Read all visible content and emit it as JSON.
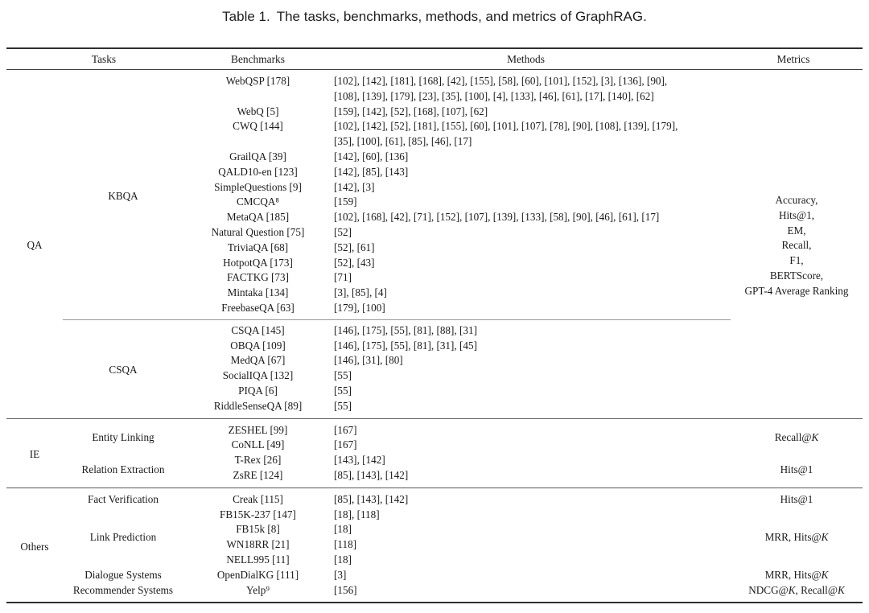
{
  "caption": {
    "label": "Table 1.",
    "text": "The tasks, benchmarks, methods, and metrics of GraphRAG."
  },
  "columns": {
    "tasks": "Tasks",
    "benchmarks": "Benchmarks",
    "methods": "Methods",
    "metrics": "Metrics"
  },
  "sections": [
    {
      "group": "QA",
      "metrics": "Accuracy,\nHits@1,\nEM,\nRecall,\nF1,\nBERTScore,\nGPT-4 Average Ranking",
      "tasks": [
        {
          "name": "KBQA",
          "rows": [
            {
              "benchmark": "WebQSP [178]",
              "methods": "[102], [142], [181], [168], [42], [155], [58], [60], [101], [152], [3], [136], [90],\n[108], [139], [179], [23], [35], [100], [4], [133], [46], [61], [17], [140], [62]"
            },
            {
              "benchmark": "WebQ [5]",
              "methods": "[159], [142], [52], [168], [107], [62]"
            },
            {
              "benchmark": "CWQ [144]",
              "methods": "[102], [142], [52], [181], [155], [60], [101], [107], [78], [90], [108], [139], [179],\n[35], [100], [61], [85], [46], [17]"
            },
            {
              "benchmark": "GrailQA [39]",
              "methods": "[142], [60], [136]"
            },
            {
              "benchmark": "QALD10-en [123]",
              "methods": "[142], [85], [143]"
            },
            {
              "benchmark": "SimpleQuestions [9]",
              "methods": "[142], [3]"
            },
            {
              "benchmark": "CMCQA⁸",
              "methods": "[159]"
            },
            {
              "benchmark": "MetaQA [185]",
              "methods": "[102], [168], [42], [71], [152], [107], [139], [133], [58], [90], [46], [61], [17]"
            },
            {
              "benchmark": "Natural Question [75]",
              "methods": "[52]"
            },
            {
              "benchmark": "TriviaQA [68]",
              "methods": "[52], [61]"
            },
            {
              "benchmark": "HotpotQA [173]",
              "methods": "[52], [43]"
            },
            {
              "benchmark": "FACTKG [73]",
              "methods": "[71]"
            },
            {
              "benchmark": "Mintaka [134]",
              "methods": "[3], [85], [4]"
            },
            {
              "benchmark": "FreebaseQA [63]",
              "methods": "[179], [100]"
            }
          ]
        },
        {
          "name": "CSQA",
          "rows": [
            {
              "benchmark": "CSQA [145]",
              "methods": "[146], [175], [55], [81], [88], [31]"
            },
            {
              "benchmark": "OBQA [109]",
              "methods": "[146], [175], [55], [81], [31], [45]"
            },
            {
              "benchmark": "MedQA [67]",
              "methods": "[146], [31], [80]"
            },
            {
              "benchmark": "SocialIQA [132]",
              "methods": "[55]"
            },
            {
              "benchmark": "PIQA [6]",
              "methods": "[55]"
            },
            {
              "benchmark": "RiddleSenseQA [89]",
              "methods": "[55]"
            }
          ]
        }
      ]
    },
    {
      "group": "IE",
      "tasks": [
        {
          "name": "Entity Linking",
          "metrics": "Recall@K",
          "rows": [
            {
              "benchmark": "ZESHEL [99]",
              "methods": "[167]"
            },
            {
              "benchmark": "CoNLL [49]",
              "methods": "[167]"
            }
          ]
        },
        {
          "name": "Relation Extraction",
          "metrics": "Hits@1",
          "rows": [
            {
              "benchmark": "T-Rex [26]",
              "methods": "[143], [142]"
            },
            {
              "benchmark": "ZsRE [124]",
              "methods": "[85], [143], [142]"
            }
          ]
        }
      ]
    },
    {
      "group": "Others",
      "tasks": [
        {
          "name": "Fact Verification",
          "metrics": "Hits@1",
          "rows": [
            {
              "benchmark": "Creak [115]",
              "methods": "[85], [143], [142]"
            }
          ]
        },
        {
          "name": "Link Prediction",
          "metrics": "MRR, Hits@K",
          "rows": [
            {
              "benchmark": "FB15K-237 [147]",
              "methods": "[18], [118]"
            },
            {
              "benchmark": "FB15k [8]",
              "methods": "[18]"
            },
            {
              "benchmark": "WN18RR [21]",
              "methods": "[118]"
            },
            {
              "benchmark": "NELL995 [11]",
              "methods": "[18]"
            }
          ]
        },
        {
          "name": "Dialogue Systems",
          "metrics": "MRR, Hits@K",
          "rows": [
            {
              "benchmark": "OpenDialKG [111]",
              "methods": "[3]"
            }
          ]
        },
        {
          "name": "Recommender Systems",
          "metrics": "NDCG@K, Recall@K",
          "rows": [
            {
              "benchmark": "Yelp⁹",
              "methods": "[156]"
            }
          ]
        }
      ]
    }
  ]
}
